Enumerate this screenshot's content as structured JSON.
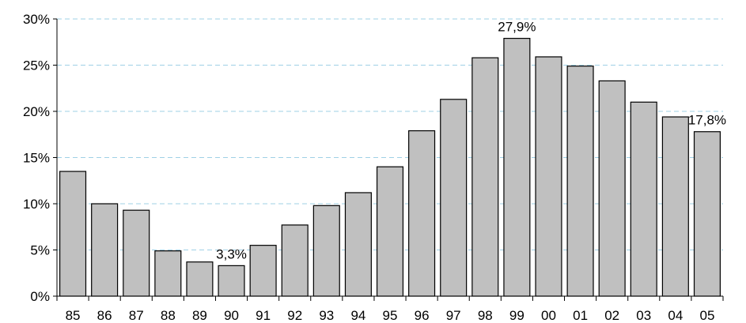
{
  "chart_data": {
    "type": "bar",
    "categories": [
      "85",
      "86",
      "87",
      "88",
      "89",
      "90",
      "91",
      "92",
      "93",
      "94",
      "95",
      "96",
      "97",
      "98",
      "99",
      "00",
      "01",
      "02",
      "03",
      "04",
      "05"
    ],
    "values": [
      13.5,
      10.0,
      9.3,
      4.9,
      3.7,
      3.3,
      5.5,
      7.7,
      9.8,
      11.2,
      14.0,
      17.9,
      21.3,
      25.8,
      27.9,
      25.9,
      24.9,
      23.3,
      21.0,
      19.4,
      17.8
    ],
    "title": "",
    "xlabel": "",
    "ylabel": "",
    "ylim": [
      0,
      30
    ],
    "yticks": [
      0,
      5,
      10,
      15,
      20,
      25,
      30
    ],
    "ytick_labels": [
      "0%",
      "5%",
      "10%",
      "15%",
      "20%",
      "25%",
      "30%"
    ],
    "annotations": [
      {
        "category": "90",
        "text": "3,3%"
      },
      {
        "category": "99",
        "text": "27,9%"
      },
      {
        "category": "05",
        "text": "17,8%"
      }
    ],
    "grid": true,
    "legend": "none",
    "colors": {
      "bar_fill": "#c0c0c0",
      "bar_stroke": "#000000",
      "grid": "#9fd0e6"
    }
  }
}
